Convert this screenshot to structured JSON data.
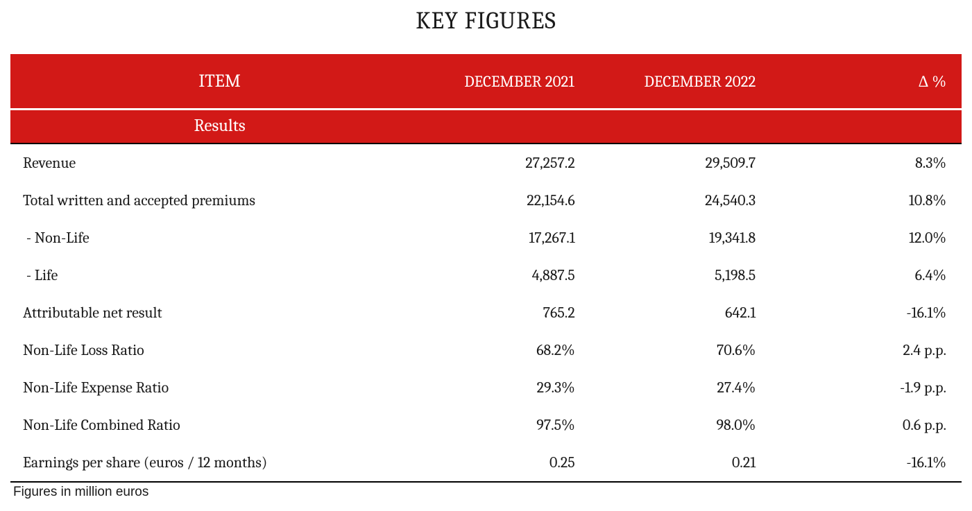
{
  "title": "KEY FIGURES",
  "columns": {
    "item": "ITEM",
    "col2021": "DECEMBER 2021",
    "col2022": "DECEMBER 2022",
    "delta": "Δ %"
  },
  "section_label": "Results",
  "rows": [
    {
      "item": "Revenue",
      "v2021": "27,257.2",
      "v2022": "29,509.7",
      "delta": "8.3%"
    },
    {
      "item": "Total written and accepted premiums",
      "v2021": "22,154.6",
      "v2022": "24,540.3",
      "delta": "10.8%"
    },
    {
      "item": " - Non-Life",
      "v2021": "17,267.1",
      "v2022": "19,341.8",
      "delta": "12.0%"
    },
    {
      "item": " - Life",
      "v2021": "4,887.5",
      "v2022": "5,198.5",
      "delta": "6.4%"
    },
    {
      "item": "Attributable net result",
      "v2021": "765.2",
      "v2022": "642.1",
      "delta": "-16.1%"
    },
    {
      "item": "Non-Life Loss Ratio",
      "v2021": "68.2%",
      "v2022": "70.6%",
      "delta": "2.4 p.p."
    },
    {
      "item": "Non-Life Expense Ratio",
      "v2021": "29.3%",
      "v2022": "27.4%",
      "delta": "-1.9 p.p."
    },
    {
      "item": "Non-Life Combined Ratio",
      "v2021": "97.5%",
      "v2022": "98.0%",
      "delta": "0.6 p.p."
    },
    {
      "item": "Earnings per share (euros / 12 months)",
      "v2021": "0.25",
      "v2022": "0.21",
      "delta": "-16.1%"
    }
  ],
  "footnote": "Figures in million euros",
  "styling": {
    "header_bg": "#d21917",
    "header_text": "#ffffff",
    "body_text": "#1a1a1a",
    "rule_color": "#000000",
    "title_fontsize": 34,
    "header_fontsize": 23,
    "item_header_fontsize": 26,
    "section_fontsize": 25,
    "cell_fontsize": 22,
    "footnote_fontsize": 19,
    "font_family": "Cambria, Georgia, serif",
    "footnote_font_family": "Arial, Helvetica, sans-serif",
    "column_widths_pct": [
      44,
      19,
      19,
      18
    ]
  }
}
